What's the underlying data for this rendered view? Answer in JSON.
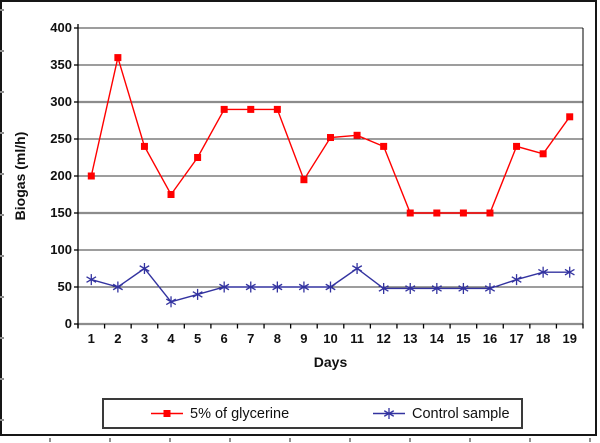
{
  "chart_data": {
    "type": "line",
    "title": "",
    "xlabel": "Days",
    "ylabel": "Biogas (ml/h)",
    "categories": [
      "1",
      "2",
      "3",
      "4",
      "5",
      "6",
      "7",
      "8",
      "9",
      "10",
      "11",
      "12",
      "13",
      "14",
      "15",
      "16",
      "17",
      "18",
      "19"
    ],
    "yticks": [
      0,
      50,
      100,
      150,
      200,
      250,
      300,
      350,
      400
    ],
    "ylim": [
      0,
      400
    ],
    "grid": true,
    "legend_position": "bottom",
    "series": [
      {
        "name": "5% of glycerine",
        "color": "#ff0000",
        "marker": "square",
        "values": [
          200,
          360,
          240,
          175,
          225,
          290,
          290,
          290,
          195,
          252,
          255,
          240,
          150,
          150,
          150,
          150,
          240,
          230,
          280
        ]
      },
      {
        "name": "Control sample",
        "color": "#3333a0",
        "marker": "star",
        "values": [
          60,
          50,
          75,
          30,
          40,
          50,
          50,
          50,
          50,
          50,
          75,
          48,
          48,
          48,
          48,
          48,
          60,
          70,
          70
        ]
      }
    ]
  },
  "colors": {
    "thin_gridline": "#3b3b3b",
    "thick_gridline": "#8c8c8c",
    "axis": "#000000"
  }
}
